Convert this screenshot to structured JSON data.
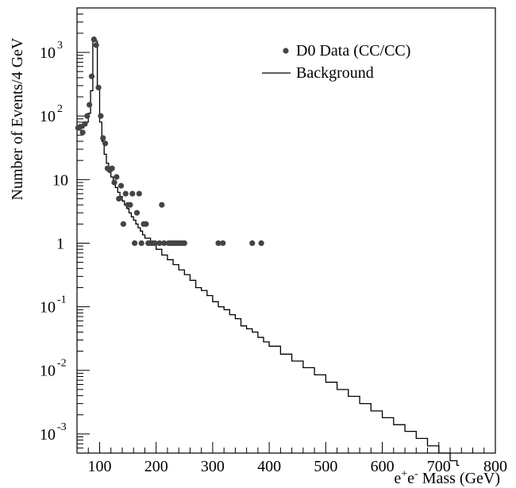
{
  "chart_data": {
    "type": "line",
    "ylabel": "Number of Events/4 GeV",
    "xlabel_parts": [
      "e",
      "+",
      "e",
      "-",
      " Mass (GeV)"
    ],
    "xlim": [
      60,
      800
    ],
    "ylim": [
      0.0005,
      5000
    ],
    "yscale": "log",
    "x_ticks": [
      100,
      200,
      300,
      400,
      500,
      600,
      700,
      800
    ],
    "y_ticks": [
      {
        "value": 1000,
        "base": "10",
        "exp": "3"
      },
      {
        "value": 100,
        "base": "10",
        "exp": "2"
      },
      {
        "value": 10,
        "base": "10",
        "exp": ""
      },
      {
        "value": 1,
        "base": "1",
        "exp": ""
      },
      {
        "value": 0.1,
        "base": "10",
        "exp": "-1"
      },
      {
        "value": 0.01,
        "base": "10",
        "exp": "-2"
      },
      {
        "value": 0.001,
        "base": "10",
        "exp": "-3"
      }
    ],
    "legend": {
      "placement": "top-right",
      "entries": [
        {
          "label": "D0 Data (CC/CC)",
          "marker": "dot"
        },
        {
          "label": "Background",
          "marker": "line"
        }
      ]
    },
    "series": [
      {
        "name": "D0 Data (CC/CC)",
        "kind": "scatter",
        "color": "#444444",
        "points": [
          [
            62,
            65
          ],
          [
            66,
            68
          ],
          [
            70,
            55
          ],
          [
            74,
            75
          ],
          [
            78,
            100
          ],
          [
            82,
            150
          ],
          [
            86,
            420
          ],
          [
            90,
            1600
          ],
          [
            94,
            1300
          ],
          [
            98,
            280
          ],
          [
            102,
            100
          ],
          [
            106,
            45
          ],
          [
            110,
            37
          ],
          [
            114,
            15
          ],
          [
            118,
            14
          ],
          [
            122,
            15
          ],
          [
            126,
            9
          ],
          [
            130,
            11
          ],
          [
            134,
            5
          ],
          [
            138,
            8
          ],
          [
            142,
            2
          ],
          [
            146,
            6
          ],
          [
            150,
            4
          ],
          [
            154,
            4
          ],
          [
            158,
            6
          ],
          [
            162,
            1
          ],
          [
            166,
            3
          ],
          [
            170,
            6
          ],
          [
            174,
            1
          ],
          [
            178,
            2
          ],
          [
            182,
            2
          ],
          [
            186,
            1
          ],
          [
            190,
            1
          ],
          [
            194,
            1
          ],
          [
            198,
            1
          ],
          [
            206,
            1
          ],
          [
            210,
            4
          ],
          [
            214,
            1
          ],
          [
            222,
            1
          ],
          [
            226,
            1
          ],
          [
            230,
            1
          ],
          [
            234,
            1
          ],
          [
            238,
            1
          ],
          [
            242,
            1
          ],
          [
            246,
            1
          ],
          [
            250,
            1
          ],
          [
            310,
            1
          ],
          [
            318,
            1
          ],
          [
            370,
            1
          ],
          [
            386,
            1
          ]
        ]
      },
      {
        "name": "Background",
        "kind": "step",
        "color": "#000000",
        "points": [
          [
            60,
            65
          ],
          [
            64,
            70
          ],
          [
            68,
            65
          ],
          [
            72,
            70
          ],
          [
            76,
            80
          ],
          [
            80,
            110
          ],
          [
            84,
            250
          ],
          [
            88,
            1500
          ],
          [
            92,
            1500
          ],
          [
            96,
            280
          ],
          [
            100,
            80
          ],
          [
            104,
            40
          ],
          [
            108,
            25
          ],
          [
            112,
            18
          ],
          [
            116,
            14
          ],
          [
            120,
            11
          ],
          [
            124,
            9
          ],
          [
            128,
            7.5
          ],
          [
            132,
            6.3
          ],
          [
            136,
            5.4
          ],
          [
            140,
            4.6
          ],
          [
            144,
            4.0
          ],
          [
            148,
            3.5
          ],
          [
            152,
            3.0
          ],
          [
            156,
            2.6
          ],
          [
            160,
            2.3
          ],
          [
            164,
            2.0
          ],
          [
            168,
            1.75
          ],
          [
            172,
            1.55
          ],
          [
            176,
            1.35
          ],
          [
            180,
            1.2
          ],
          [
            190,
            0.95
          ],
          [
            200,
            0.8
          ],
          [
            210,
            0.65
          ],
          [
            220,
            0.55
          ],
          [
            230,
            0.46
          ],
          [
            240,
            0.38
          ],
          [
            250,
            0.32
          ],
          [
            260,
            0.26
          ],
          [
            270,
            0.2
          ],
          [
            280,
            0.18
          ],
          [
            290,
            0.15
          ],
          [
            300,
            0.12
          ],
          [
            310,
            0.1
          ],
          [
            320,
            0.09
          ],
          [
            330,
            0.075
          ],
          [
            340,
            0.065
          ],
          [
            350,
            0.05
          ],
          [
            360,
            0.045
          ],
          [
            370,
            0.04
          ],
          [
            380,
            0.033
          ],
          [
            390,
            0.028
          ],
          [
            400,
            0.024
          ],
          [
            420,
            0.018
          ],
          [
            440,
            0.014
          ],
          [
            460,
            0.011
          ],
          [
            480,
            0.0085
          ],
          [
            500,
            0.0065
          ],
          [
            520,
            0.005
          ],
          [
            540,
            0.0039
          ],
          [
            560,
            0.003
          ],
          [
            580,
            0.0023
          ],
          [
            600,
            0.0018
          ],
          [
            620,
            0.0014
          ],
          [
            640,
            0.0011
          ],
          [
            660,
            0.00085
          ],
          [
            680,
            0.00065
          ],
          [
            700,
            0.0005
          ],
          [
            720,
            0.00038
          ],
          [
            732,
            0.00032
          ]
        ]
      }
    ]
  }
}
